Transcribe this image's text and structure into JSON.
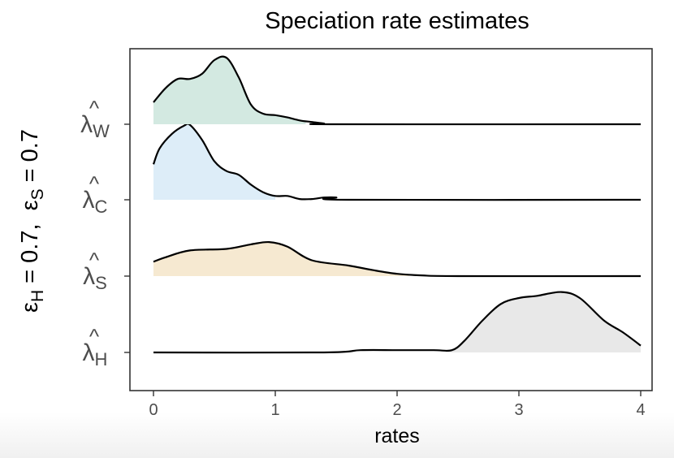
{
  "chart_data": {
    "type": "ridgeline",
    "title": "Speciation rate estimates",
    "xlabel": "rates",
    "ylabel": {
      "sym1": "ε",
      "sub1": "H",
      "eq1": " = 0.7,  ",
      "sym2": "ε",
      "sub2": "S",
      "eq2": " = 0.7"
    },
    "xlim": [
      -0.2,
      4.0
    ],
    "x_ticks": [
      0,
      1,
      2,
      3,
      4
    ],
    "grid": false,
    "legend": "none",
    "series": [
      {
        "label_symbol": "λ",
        "label_hat": "^",
        "label_sub": "W",
        "color": "#d3e9e1",
        "fill_to_x": 1.25,
        "points": [
          [
            0,
            0.29
          ],
          [
            0.1,
            0.48
          ],
          [
            0.2,
            0.6
          ],
          [
            0.3,
            0.6
          ],
          [
            0.4,
            0.67
          ],
          [
            0.5,
            0.85
          ],
          [
            0.6,
            0.88
          ],
          [
            0.7,
            0.62
          ],
          [
            0.8,
            0.26
          ],
          [
            0.9,
            0.14
          ],
          [
            1.0,
            0.12
          ],
          [
            1.1,
            0.09
          ],
          [
            1.2,
            0.05
          ],
          [
            1.3,
            0.03
          ],
          [
            1.4,
            0.01
          ],
          [
            1.5,
            0.0
          ],
          [
            4.0,
            0.0
          ]
        ]
      },
      {
        "label_symbol": "λ",
        "label_hat": "^",
        "label_sub": "C",
        "color": "#ddedf8",
        "fill_to_x": 1.0,
        "points": [
          [
            0,
            0.47
          ],
          [
            0.05,
            0.68
          ],
          [
            0.15,
            0.87
          ],
          [
            0.25,
            0.98
          ],
          [
            0.3,
            0.99
          ],
          [
            0.4,
            0.79
          ],
          [
            0.5,
            0.51
          ],
          [
            0.6,
            0.38
          ],
          [
            0.7,
            0.33
          ],
          [
            0.8,
            0.2
          ],
          [
            0.9,
            0.1
          ],
          [
            1.0,
            0.05
          ],
          [
            1.1,
            0.05
          ],
          [
            1.2,
            0.01
          ],
          [
            1.3,
            0.01
          ],
          [
            1.4,
            0.03
          ],
          [
            1.5,
            0.03
          ],
          [
            1.6,
            0.0
          ],
          [
            4.0,
            0.0
          ]
        ]
      },
      {
        "label_symbol": "λ",
        "label_hat": "^",
        "label_sub": "S",
        "color": "#f6e9d1",
        "fill_to_x": 2.1,
        "points": [
          [
            0,
            0.19
          ],
          [
            0.1,
            0.25
          ],
          [
            0.3,
            0.34
          ],
          [
            0.6,
            0.36
          ],
          [
            0.8,
            0.42
          ],
          [
            0.95,
            0.45
          ],
          [
            1.1,
            0.39
          ],
          [
            1.3,
            0.21
          ],
          [
            1.6,
            0.14
          ],
          [
            1.8,
            0.08
          ],
          [
            2.0,
            0.03
          ],
          [
            2.2,
            0.01
          ],
          [
            2.5,
            0.0
          ],
          [
            4.0,
            0.0
          ]
        ]
      },
      {
        "label_symbol": "λ",
        "label_hat": "^",
        "label_sub": "H",
        "color": "#e8e8e8",
        "fill_from_x": 2.4,
        "points": [
          [
            0,
            0.0
          ],
          [
            1.4,
            0.0
          ],
          [
            1.7,
            0.03
          ],
          [
            2.0,
            0.03
          ],
          [
            2.3,
            0.03
          ],
          [
            2.45,
            0.03
          ],
          [
            2.55,
            0.15
          ],
          [
            2.7,
            0.42
          ],
          [
            2.85,
            0.64
          ],
          [
            3.0,
            0.72
          ],
          [
            3.15,
            0.75
          ],
          [
            3.35,
            0.8
          ],
          [
            3.5,
            0.72
          ],
          [
            3.7,
            0.42
          ],
          [
            3.85,
            0.27
          ],
          [
            4.0,
            0.09
          ]
        ]
      }
    ]
  }
}
